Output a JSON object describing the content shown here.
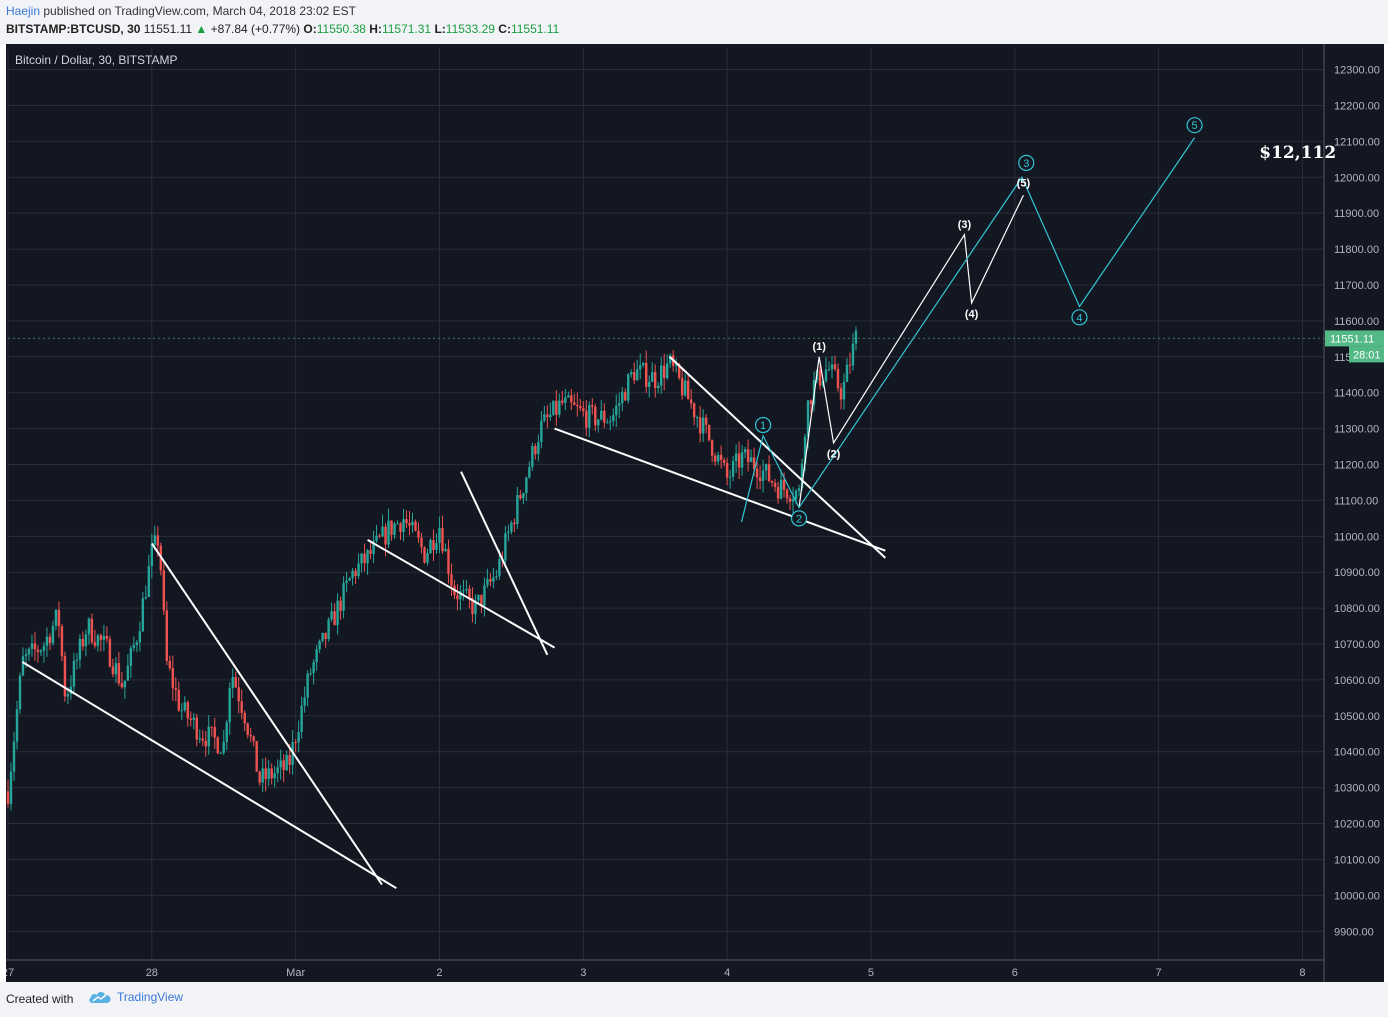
{
  "header": {
    "author": "Haejin",
    "published_text": "published on TradingView.com, March 04, 2018 23:02 EST",
    "symbol": "BITSTAMP:BTCUSD, 30",
    "last": "11551.11",
    "change": "+87.84 (+0.77%)",
    "o_label": "O:",
    "o_value": "11550.38",
    "h_label": "H:",
    "h_value": "11571.31",
    "l_label": "L:",
    "l_value": "11533.29",
    "c_label": "C:",
    "c_value": "11551.11"
  },
  "chart_title": "Bitcoin / Dollar, 30, BITSTAMP",
  "price_badge": "11551.11",
  "time_badge": "28:01",
  "annotation": "$12,112",
  "footer": {
    "created_with": "Created with",
    "brand": "TradingView"
  },
  "colors": {
    "background": "#131722",
    "up": "#26a69a",
    "down": "#ef5350",
    "wave_primary": "#32c5d2",
    "wave_minor": "#ffffff",
    "price_badge": "#53b987"
  },
  "chart_data": {
    "type": "candlestick",
    "title": "Bitcoin / Dollar, 30, BITSTAMP",
    "y_ticks": [
      12300,
      12200,
      12100,
      12000,
      11900,
      11800,
      11700,
      11600,
      11500,
      11400,
      11300,
      11200,
      11100,
      11000,
      10900,
      10800,
      10700,
      10600,
      10500,
      10400,
      10300,
      10200,
      10100,
      10000,
      9900
    ],
    "y_tick_labels": [
      "12300.00",
      "12200.00",
      "12100.00",
      "12000.00",
      "11900.00",
      "11800.00",
      "11700.00",
      "11600.00",
      "11500.00",
      "11400.00",
      "11300.00",
      "11200.00",
      "11100.00",
      "11000.00",
      "10900.00",
      "10800.00",
      "10700.00",
      "10600.00",
      "10500.00",
      "10400.00",
      "10300.00",
      "10200.00",
      "10100.00",
      "10000.00",
      "9900.00"
    ],
    "ylim": [
      9820,
      12360
    ],
    "x_ticks": [
      {
        "t": 0,
        "label": "27"
      },
      {
        "t": 1,
        "label": "28"
      },
      {
        "t": 2,
        "label": "Mar"
      },
      {
        "t": 3,
        "label": "2"
      },
      {
        "t": 4,
        "label": "3"
      },
      {
        "t": 5,
        "label": "4"
      },
      {
        "t": 6,
        "label": "5"
      },
      {
        "t": 7,
        "label": "6"
      },
      {
        "t": 8,
        "label": "7"
      },
      {
        "t": 9,
        "label": "8"
      }
    ],
    "xlim": [
      0,
      9.15
    ],
    "price_path": [
      [
        0.0,
        10290
      ],
      [
        0.1,
        10650
      ],
      [
        0.25,
        10700
      ],
      [
        0.35,
        10780
      ],
      [
        0.4,
        10550
      ],
      [
        0.55,
        10750
      ],
      [
        0.7,
        10680
      ],
      [
        0.8,
        10580
      ],
      [
        0.9,
        10730
      ],
      [
        1.0,
        10950
      ],
      [
        1.05,
        11000
      ],
      [
        1.1,
        10650
      ],
      [
        1.2,
        10520
      ],
      [
        1.35,
        10450
      ],
      [
        1.5,
        10420
      ],
      [
        1.55,
        10630
      ],
      [
        1.65,
        10500
      ],
      [
        1.75,
        10320
      ],
      [
        1.85,
        10340
      ],
      [
        1.95,
        10360
      ],
      [
        2.1,
        10620
      ],
      [
        2.25,
        10760
      ],
      [
        2.4,
        10900
      ],
      [
        2.5,
        10940
      ],
      [
        2.65,
        11020
      ],
      [
        2.75,
        11050
      ],
      [
        2.9,
        10950
      ],
      [
        3.0,
        11030
      ],
      [
        3.1,
        10850
      ],
      [
        3.25,
        10800
      ],
      [
        3.4,
        10900
      ],
      [
        3.55,
        11100
      ],
      [
        3.7,
        11300
      ],
      [
        3.85,
        11370
      ],
      [
        4.05,
        11330
      ],
      [
        4.2,
        11330
      ],
      [
        4.35,
        11460
      ],
      [
        4.5,
        11440
      ],
      [
        4.6,
        11480
      ],
      [
        4.8,
        11330
      ],
      [
        4.9,
        11250
      ],
      [
        5.0,
        11160
      ],
      [
        5.1,
        11220
      ],
      [
        5.2,
        11200
      ],
      [
        5.35,
        11140
      ],
      [
        5.5,
        11120
      ],
      [
        5.55,
        11350
      ],
      [
        5.6,
        11420
      ],
      [
        5.7,
        11470
      ],
      [
        5.8,
        11400
      ],
      [
        5.9,
        11560
      ]
    ],
    "trendlines": [
      {
        "from": [
          0.1,
          10650
        ],
        "to": [
          2.7,
          10020
        ]
      },
      {
        "from": [
          1.0,
          10980
        ],
        "to": [
          2.6,
          10030
        ]
      },
      {
        "from": [
          2.5,
          10990
        ],
        "to": [
          3.8,
          10690
        ]
      },
      {
        "from": [
          3.15,
          11180
        ],
        "to": [
          3.75,
          10670
        ]
      },
      {
        "from": [
          3.8,
          11300
        ],
        "to": [
          6.1,
          10960
        ]
      },
      {
        "from": [
          4.6,
          11500
        ],
        "to": [
          6.1,
          10940
        ]
      }
    ],
    "wave_primary": [
      [
        5.1,
        11040
      ],
      [
        5.25,
        11280
      ],
      [
        5.5,
        11080
      ],
      [
        7.05,
        12000
      ],
      [
        7.45,
        11640
      ],
      [
        8.25,
        12110
      ]
    ],
    "wave_primary_labels": [
      {
        "label": "1",
        "t": 5.25,
        "v": 11310
      },
      {
        "label": "2",
        "t": 5.5,
        "v": 11050
      },
      {
        "label": "3",
        "t": 7.08,
        "v": 12040
      },
      {
        "label": "4",
        "t": 7.45,
        "v": 11610
      },
      {
        "label": "5",
        "t": 8.25,
        "v": 12145
      }
    ],
    "wave_minor": [
      [
        5.5,
        11080
      ],
      [
        5.64,
        11500
      ],
      [
        5.74,
        11260
      ],
      [
        6.65,
        11840
      ],
      [
        6.7,
        11650
      ],
      [
        7.06,
        11950
      ]
    ],
    "wave_minor_labels": [
      {
        "label": "(1)",
        "t": 5.64,
        "v": 11530
      },
      {
        "label": "(2)",
        "t": 5.74,
        "v": 11230
      },
      {
        "label": "(3)",
        "t": 6.65,
        "v": 11870
      },
      {
        "label": "(4)",
        "t": 6.7,
        "v": 11620
      },
      {
        "label": "(5)",
        "t": 7.06,
        "v": 11985
      }
    ],
    "annotation": {
      "text": "$12,112",
      "t": 8.7,
      "v": 12070
    },
    "current_price": 11551.11
  }
}
